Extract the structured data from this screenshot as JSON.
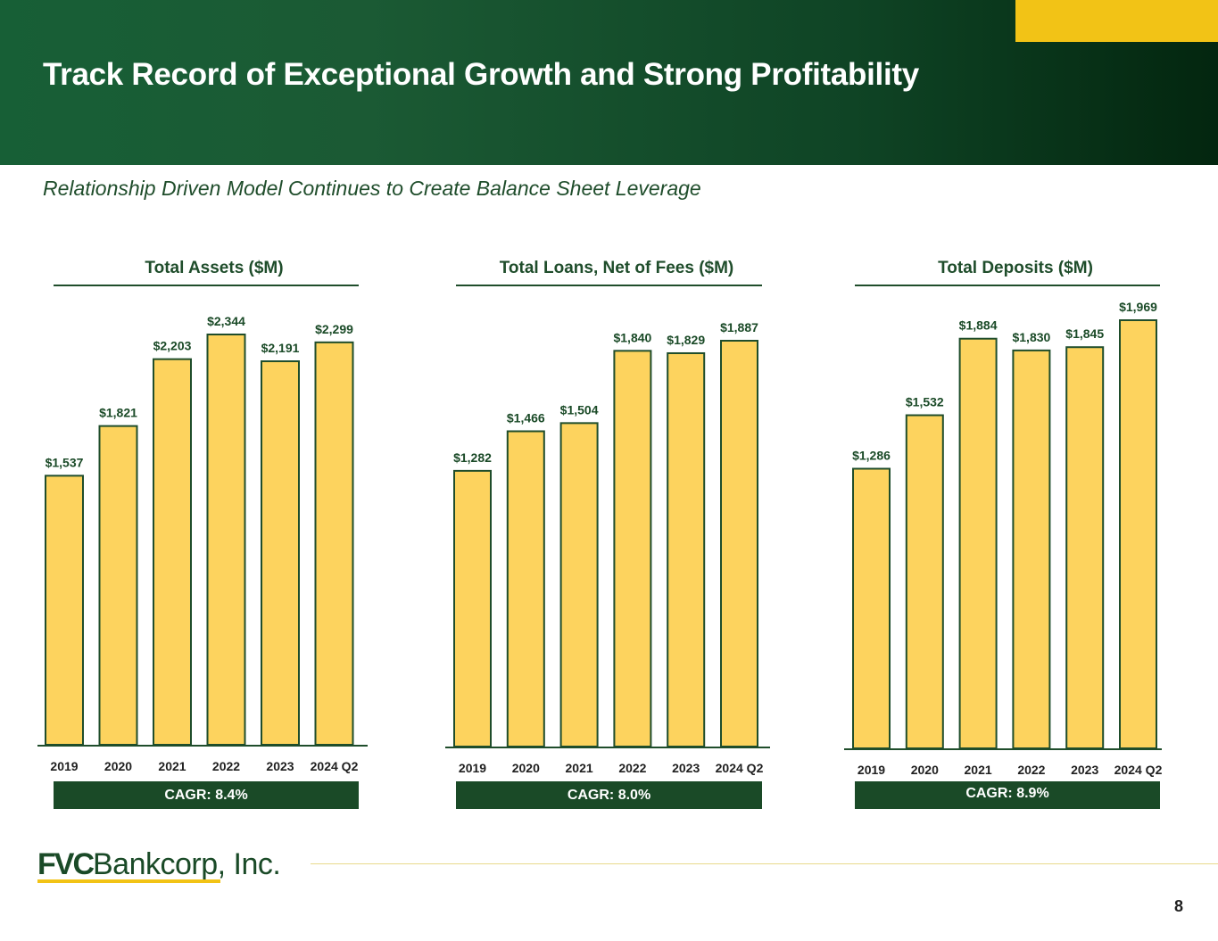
{
  "header": {
    "title": "Track Record of Exceptional Growth and Strong Profitability",
    "subtitle": "Relationship Driven Model Continues to Create Balance Sheet Leverage"
  },
  "colors": {
    "header_green": "#175f36",
    "accent_yellow": "#f2c316",
    "bar_fill": "#fdd35e",
    "bar_stroke": "#1f4d2b",
    "dark_green": "#1a4a27"
  },
  "chart_data": [
    {
      "type": "bar",
      "title": "Total Assets ($M)",
      "categories": [
        "2019",
        "2020",
        "2021",
        "2022",
        "2023",
        "2024 Q2"
      ],
      "values": [
        1537,
        1821,
        2203,
        2344,
        2191,
        2299
      ],
      "labels": [
        "$1,537",
        "$1,821",
        "$2,203",
        "$2,344",
        "$2,191",
        "$2,299"
      ],
      "cagr": "CAGR: 8.4%",
      "xlabel": "",
      "ylabel": "",
      "ylim": [
        0,
        2344
      ],
      "grid": false
    },
    {
      "type": "bar",
      "title": "Total Loans, Net of Fees ($M)",
      "categories": [
        "2019",
        "2020",
        "2021",
        "2022",
        "2023",
        "2024 Q2"
      ],
      "values": [
        1282,
        1466,
        1504,
        1840,
        1829,
        1887
      ],
      "labels": [
        "$1,282",
        "$1,466",
        "$1,504",
        "$1,840",
        "$1,829",
        "$1,887"
      ],
      "cagr": "CAGR: 8.0%",
      "xlabel": "",
      "ylabel": "",
      "ylim": [
        0,
        1887
      ],
      "grid": false
    },
    {
      "type": "bar",
      "title": "Total Deposits ($M)",
      "categories": [
        "2019",
        "2020",
        "2021",
        "2022",
        "2023",
        "2024 Q2"
      ],
      "values": [
        1286,
        1532,
        1884,
        1830,
        1845,
        1969
      ],
      "labels": [
        "$1,286",
        "$1,532",
        "$1,884",
        "$1,830",
        "$1,845",
        "$1,969"
      ],
      "cagr": "CAGR: 8.9%",
      "xlabel": "",
      "ylabel": "",
      "ylim": [
        0,
        1969
      ],
      "grid": false
    }
  ],
  "footer": {
    "logo_bold": "FVC",
    "logo_rest": "Bankcorp, Inc.",
    "page_number": "8"
  }
}
